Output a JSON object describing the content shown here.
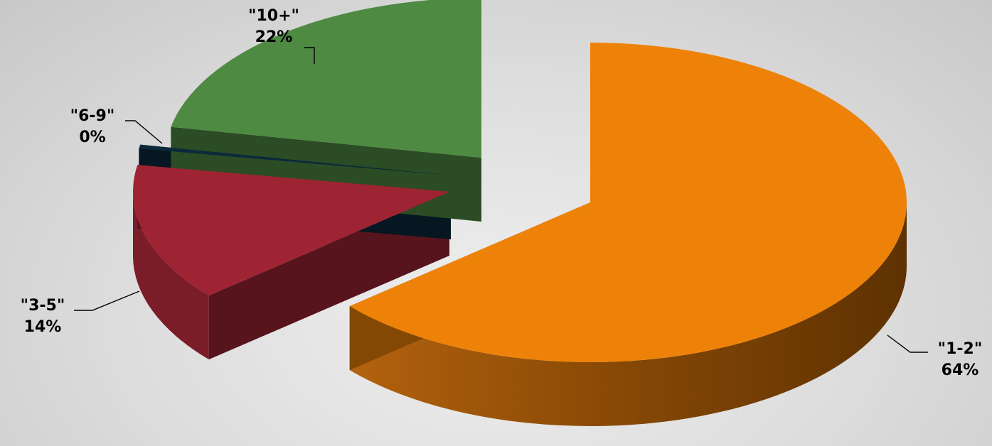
{
  "chart_data": {
    "type": "pie",
    "style": "3d exploded",
    "categories": [
      "\"1-2\"",
      "\"3-5\"",
      "\"6-9\"",
      "\"10+\""
    ],
    "values": [
      64,
      14,
      0.4,
      22
    ],
    "percent_labels": [
      "64%",
      "14%",
      "0%",
      "22%"
    ],
    "colors": [
      "#ee8208",
      "#9e2434",
      "#0a2a3c",
      "#4e8a42"
    ],
    "legend": "none",
    "title": ""
  }
}
